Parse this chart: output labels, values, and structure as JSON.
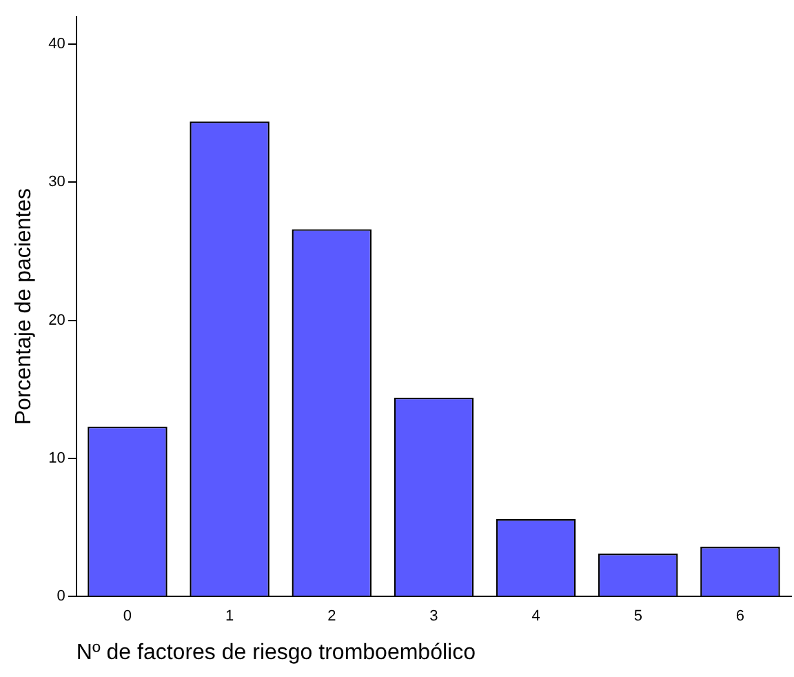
{
  "chart_data": {
    "type": "bar",
    "xlabel": "Nº de factores de riesgo tromboembólico",
    "ylabel": "Porcentaje de pacientes",
    "categories": [
      "0",
      "1",
      "2",
      "3",
      "4",
      "5",
      "6"
    ],
    "values": [
      12.3,
      34.4,
      26.6,
      14.4,
      5.6,
      3.1,
      3.6
    ],
    "color": "#5a5aff",
    "ylim": [
      0,
      42
    ],
    "yticks": [
      0,
      10,
      20,
      30,
      40
    ],
    "grid": false,
    "legend": false
  }
}
